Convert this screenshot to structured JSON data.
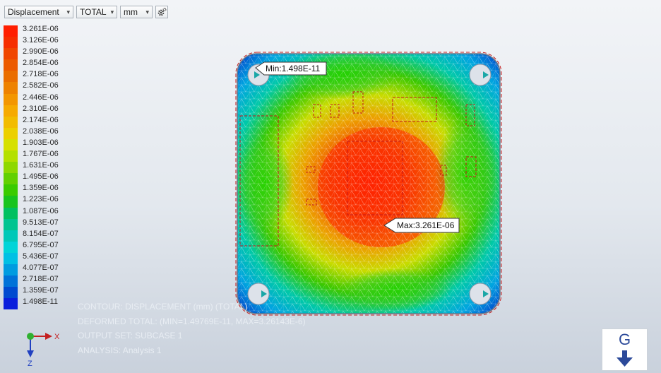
{
  "toolbar": {
    "result_type": "Displacement",
    "component": "TOTAL",
    "unit": "mm",
    "settings_icon": "gear-icon"
  },
  "legend": {
    "values": [
      "3.261E-06",
      "3.126E-06",
      "2.990E-06",
      "2.854E-06",
      "2.718E-06",
      "2.582E-06",
      "2.446E-06",
      "2.310E-06",
      "2.174E-06",
      "2.038E-06",
      "1.903E-06",
      "1.767E-06",
      "1.631E-06",
      "1.495E-06",
      "1.359E-06",
      "1.223E-06",
      "1.087E-06",
      "9.513E-07",
      "8.154E-07",
      "6.795E-07",
      "5.436E-07",
      "4.077E-07",
      "2.718E-07",
      "1.359E-07",
      "1.498E-11"
    ],
    "colors": [
      "#ff1e00",
      "#f62e00",
      "#f04600",
      "#ec5a00",
      "#ea6e00",
      "#ee8200",
      "#f39600",
      "#f6aa00",
      "#f2bc00",
      "#ecd000",
      "#d6e000",
      "#b4e000",
      "#8ed800",
      "#62d000",
      "#3acb00",
      "#18c41e",
      "#00c060",
      "#00c490",
      "#00c8b8",
      "#00d4d8",
      "#00c0e4",
      "#009ce0",
      "#0072d8",
      "#004ad0",
      "#0a1edc"
    ]
  },
  "markers": {
    "min_label": "Min:1.498E-11",
    "max_label": "Max:3.261E-06"
  },
  "info": {
    "line1": "CONTOUR: DISPLACEMENT (mm) (TOTAL)",
    "line2": "DEFORMED TOTAL: (MIN=1.49769E-11, MAX=3.26143E-6)",
    "line3": "OUTPUT SET: SUBCASE 1",
    "line4": "ANALYSIS: Analysis 1"
  },
  "triad": {
    "x_label": "X",
    "z_label": "Z"
  },
  "viewcube": {
    "label": "G"
  }
}
